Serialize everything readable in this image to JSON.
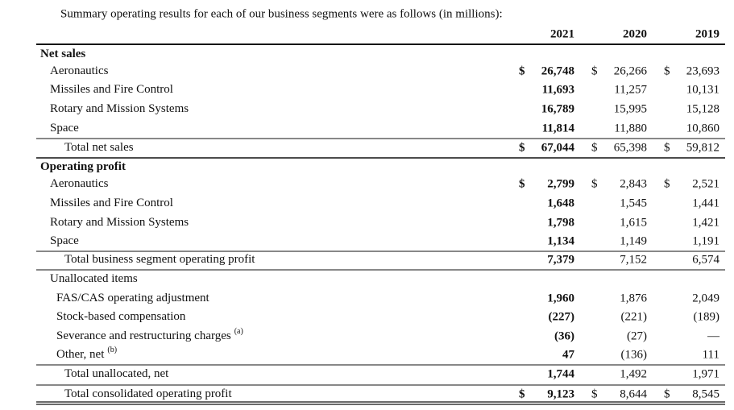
{
  "intro": "Summary operating results for each of our business segments were as follows (in millions):",
  "header": {
    "years": [
      "2021",
      "2020",
      "2019"
    ]
  },
  "rows": [
    {
      "label": "Net sales"
    },
    {
      "label": "Aeronautics",
      "currency": [
        "$",
        "$",
        "$"
      ],
      "values": [
        "26,748",
        "26,266",
        "23,693"
      ]
    },
    {
      "label": "Missiles and Fire Control",
      "values": [
        "11,693",
        "11,257",
        "10,131"
      ]
    },
    {
      "label": "Rotary and Mission Systems",
      "values": [
        "16,789",
        "15,995",
        "15,128"
      ]
    },
    {
      "label": "Space",
      "values": [
        "11,814",
        "11,880",
        "10,860"
      ]
    },
    {
      "label": "Total net sales",
      "currency": [
        "$",
        "$",
        "$"
      ],
      "values": [
        "67,044",
        "65,398",
        "59,812"
      ]
    },
    {
      "label": "Operating profit"
    },
    {
      "label": "Aeronautics",
      "currency": [
        "$",
        "$",
        "$"
      ],
      "values": [
        "2,799",
        "2,843",
        "2,521"
      ]
    },
    {
      "label": "Missiles and Fire Control",
      "values": [
        "1,648",
        "1,545",
        "1,441"
      ]
    },
    {
      "label": "Rotary and Mission Systems",
      "values": [
        "1,798",
        "1,615",
        "1,421"
      ]
    },
    {
      "label": "Space",
      "values": [
        "1,134",
        "1,149",
        "1,191"
      ]
    },
    {
      "label": "Total business segment operating profit",
      "values": [
        "7,379",
        "7,152",
        "6,574"
      ]
    },
    {
      "label": "Unallocated items"
    },
    {
      "label": "FAS/CAS operating adjustment",
      "values": [
        "1,960",
        "1,876",
        "2,049"
      ]
    },
    {
      "label": "Stock-based compensation",
      "values": [
        "(227)",
        "(221)",
        "(189)"
      ]
    },
    {
      "label": "Severance and restructuring charges",
      "note": "(a)",
      "values": [
        "(36)",
        "(27)",
        "—"
      ]
    },
    {
      "label": "Other, net",
      "note": "(b)",
      "values": [
        "47",
        "(136)",
        "111"
      ]
    },
    {
      "label": "Total unallocated, net",
      "values": [
        "1,744",
        "1,492",
        "1,971"
      ]
    },
    {
      "label": "Total consolidated operating profit",
      "currency": [
        "$",
        "$",
        "$"
      ],
      "values": [
        "9,123",
        "8,644",
        "8,545"
      ]
    }
  ]
}
